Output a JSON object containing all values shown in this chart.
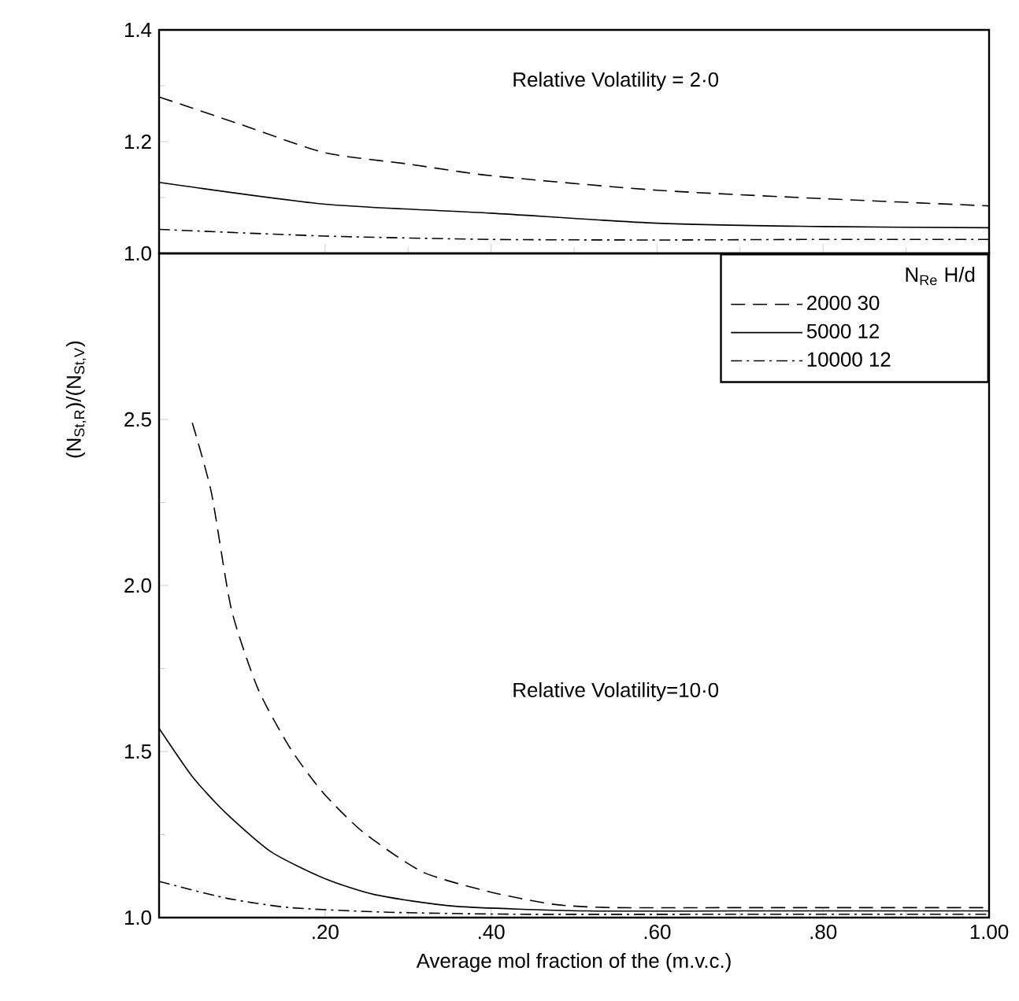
{
  "chart_data": [
    {
      "type": "line",
      "annotations": [
        "Relative Volatility = 2·0"
      ],
      "xlim": [
        0,
        1
      ],
      "ylim": [
        1.0,
        1.4
      ],
      "tick_labels": "y",
      "xticks": [
        {
          "value": 0.2,
          "label": null
        },
        {
          "value": 0.4,
          "label": null
        },
        {
          "value": 0.6,
          "label": null
        },
        {
          "value": 0.8,
          "label": null
        },
        {
          "value": 1.0,
          "label": null
        }
      ],
      "yticks": [
        {
          "value": 1.0,
          "label": "1.0"
        },
        {
          "value": 1.2,
          "label": "1.2"
        },
        {
          "value": 1.4,
          "label": "1.4"
        }
      ],
      "series": [
        {
          "color": "#000000",
          "line_style": "dashed",
          "x": [
            0,
            0.1,
            0.2,
            0.3,
            0.4,
            0.6,
            0.8,
            1.0
          ],
          "values": [
            1.28,
            1.23,
            1.18,
            1.16,
            1.139,
            1.113,
            1.098,
            1.085
          ]
        },
        {
          "color": "#000000",
          "line_style": "solid",
          "x": [
            0,
            0.2,
            0.4,
            0.6,
            0.8,
            1.0
          ],
          "values": [
            1.127,
            1.088,
            1.072,
            1.054,
            1.048,
            1.046
          ]
        },
        {
          "color": "#000000",
          "line_style": "dashdot",
          "x": [
            0,
            0.2,
            0.4,
            0.6,
            0.8,
            1.0
          ],
          "values": [
            1.043,
            1.031,
            1.025,
            1.024,
            1.025,
            1.025
          ]
        }
      ]
    },
    {
      "type": "line",
      "annotations": [
        "Relative Volatility=10·0"
      ],
      "xlabel": "Average mol fraction of the (m.v.c.)",
      "ylabel": "(N$_{St,R}$)/(N$_{St,V}$)",
      "xlim": [
        0,
        1
      ],
      "ylim": [
        1.0,
        3.0
      ],
      "legend": "top right",
      "legend_title": "N$_{Re}$ H/d",
      "xticks": [
        {
          "value": 0.2,
          "label": ".20"
        },
        {
          "value": 0.4,
          "label": ".40"
        },
        {
          "value": 0.6,
          "label": ".60"
        },
        {
          "value": 0.8,
          "label": ".80"
        },
        {
          "value": 1.0,
          "label": "1.00"
        }
      ],
      "yticks": [
        {
          "value": 1.0,
          "label": "1.0"
        },
        {
          "value": 1.5,
          "label": "1.5"
        },
        {
          "value": 2.0,
          "label": "2.0"
        },
        {
          "value": 2.5,
          "label": "2.5"
        }
      ],
      "series": [
        {
          "name": "2000 30",
          "color": "#000000",
          "line_style": "dashed",
          "x": [
            0.04,
            0.063,
            0.087,
            0.119,
            0.158,
            0.198,
            0.246,
            0.317,
            0.396,
            0.475,
            0.547,
            0.7,
            0.85,
            1.0
          ],
          "values": [
            2.49,
            2.28,
            1.93,
            1.69,
            1.51,
            1.375,
            1.257,
            1.138,
            1.079,
            1.04,
            1.03,
            1.03,
            1.03,
            1.03
          ]
        },
        {
          "name": "5000 12",
          "color": "#000000",
          "line_style": "solid",
          "x": [
            0,
            0.04,
            0.08,
            0.135,
            0.198,
            0.26,
            0.357,
            0.515,
            0.7,
            1.0
          ],
          "values": [
            1.57,
            1.425,
            1.316,
            1.198,
            1.119,
            1.069,
            1.034,
            1.02,
            1.02,
            1.02
          ]
        },
        {
          "name": "10000 12",
          "color": "#000000",
          "line_style": "dashdot",
          "x": [
            0,
            0.08,
            0.158,
            0.277,
            0.436,
            0.7,
            1.0
          ],
          "values": [
            1.109,
            1.059,
            1.03,
            1.016,
            1.01,
            1.01,
            1.01
          ]
        }
      ]
    }
  ]
}
